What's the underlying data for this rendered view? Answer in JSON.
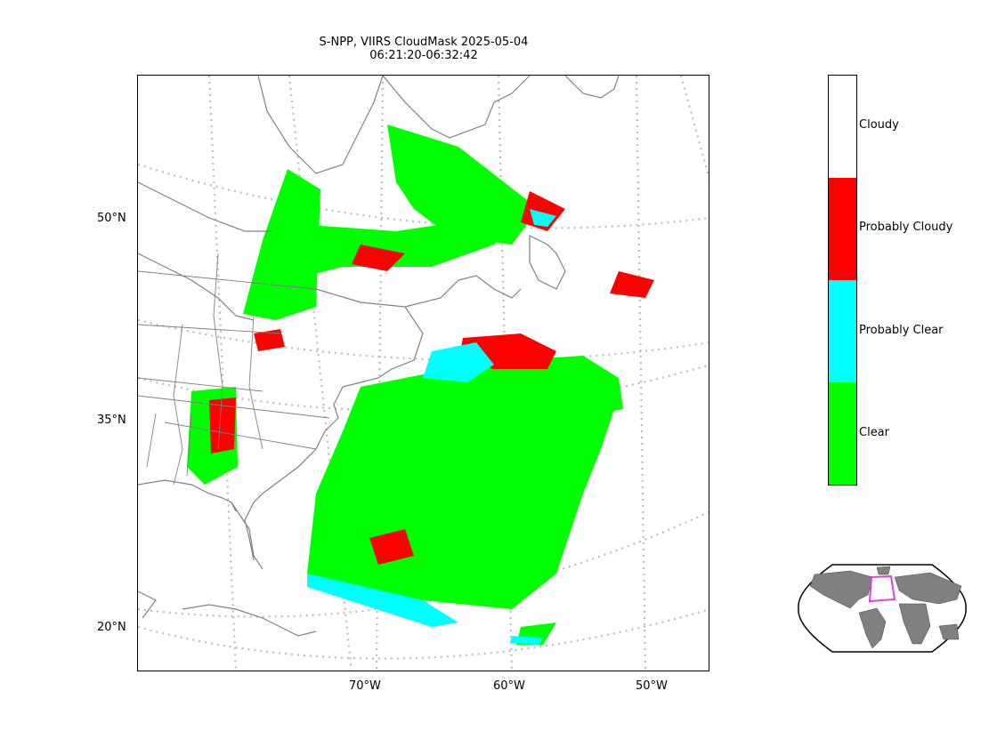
{
  "title": {
    "line1": "S-NPP, VIIRS CloudMask 2025-05-04",
    "line2": "06:21:20-06:32:42"
  },
  "map": {
    "lat_labels": [
      "50°N",
      "35°N",
      "20°N"
    ],
    "lon_labels": [
      "70°W",
      "60°W",
      "50°W"
    ],
    "coastline_color": "#808080",
    "gridline_color": "#bbbbbb"
  },
  "colorbar": {
    "classes": [
      {
        "label": "Cloudy",
        "color": "#ffffff"
      },
      {
        "label": "Probably Cloudy",
        "color": "#ff0000"
      },
      {
        "label": "Probably Clear",
        "color": "#00ffff"
      },
      {
        "label": "Clear",
        "color": "#00ff00"
      }
    ]
  },
  "inset": {
    "land_color": "#808080",
    "footprint_color": "#e040e0"
  }
}
